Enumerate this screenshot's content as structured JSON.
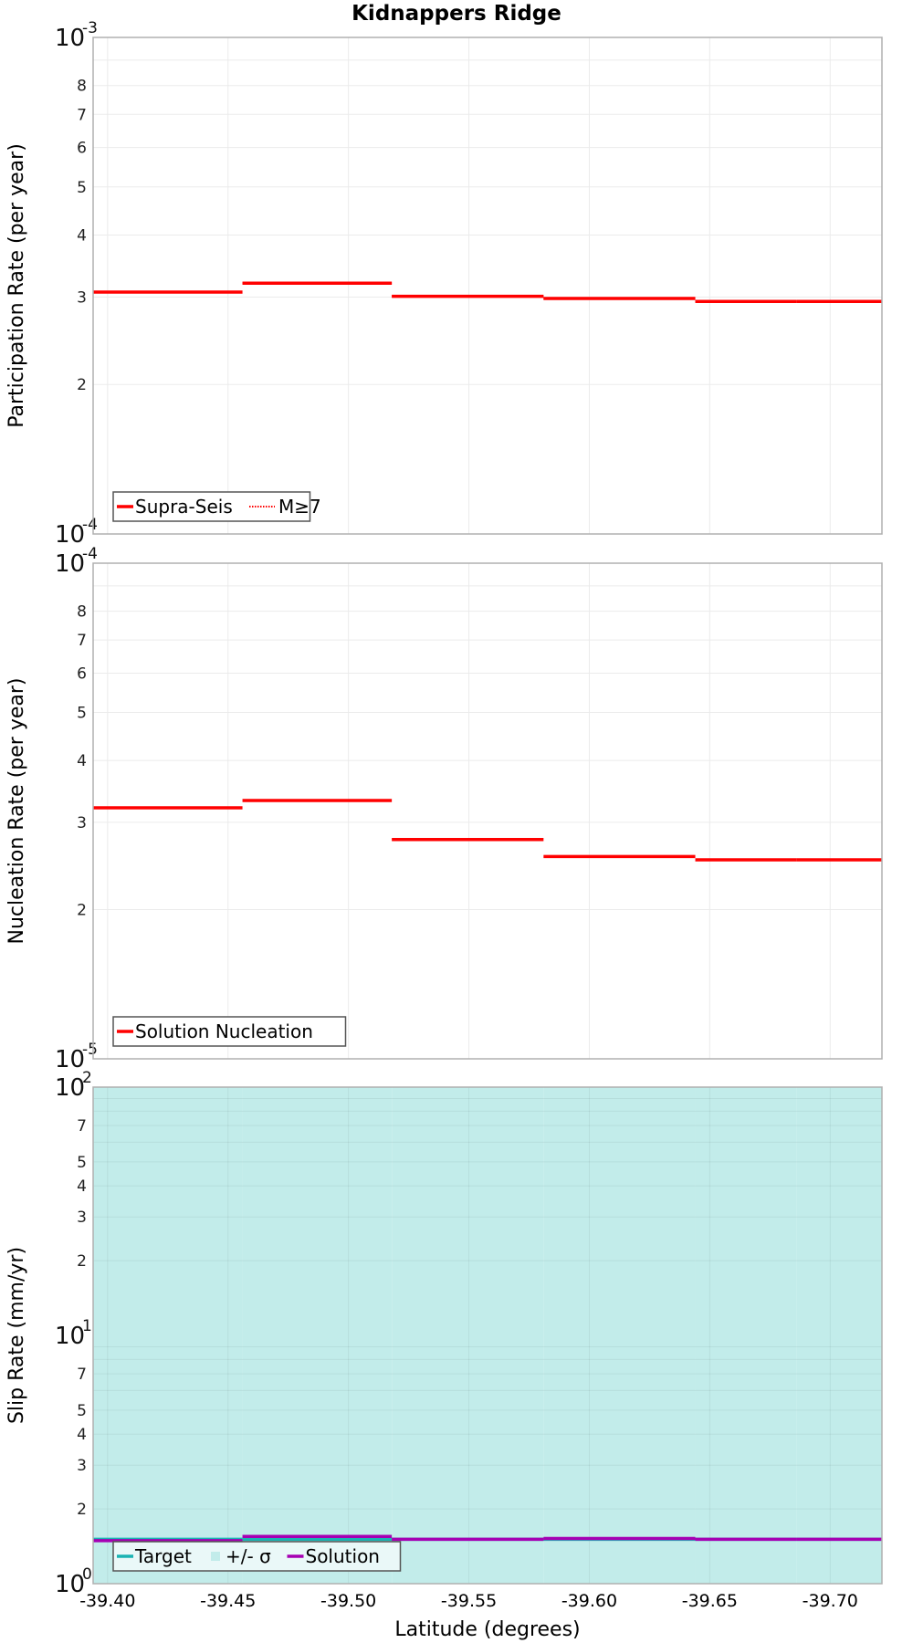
{
  "title": "Kidnappers Ridge",
  "xaxis": {
    "label": "Latitude (degrees)",
    "range": [
      -39.394,
      -39.7215
    ],
    "ticks": [
      -39.4,
      -39.45,
      -39.5,
      -39.55,
      -39.6,
      -39.65,
      -39.7
    ],
    "tick_labels": [
      "-39.40",
      "-39.45",
      "-39.50",
      "-39.55",
      "-39.60",
      "-39.65",
      "-39.70"
    ]
  },
  "chart_data": [
    {
      "type": "line",
      "panel": "participation",
      "ylabel": "Participation Rate (per year)",
      "yscale": "log",
      "ylim": [
        0.0001,
        0.001
      ],
      "ytick_minor_labels": [
        "8",
        "7",
        "6",
        "5",
        "4",
        "3",
        "2"
      ],
      "ydecade_labels": [
        {
          "base": "10",
          "exp": "-3"
        },
        {
          "base": "10",
          "exp": "-4"
        }
      ],
      "segments_lat": [
        [
          -39.394,
          -39.456
        ],
        [
          -39.456,
          -39.518
        ],
        [
          -39.518,
          -39.581
        ],
        [
          -39.581,
          -39.644
        ],
        [
          -39.644,
          -39.686
        ],
        [
          -39.686,
          -39.7215
        ]
      ],
      "series": [
        {
          "name": "Supra-Seis",
          "style": "solid",
          "color": "#ff0000",
          "values": [
            0.000307,
            0.00032,
            0.000301,
            0.000298,
            0.000294,
            0.000294
          ]
        },
        {
          "name": "M≥7",
          "style": "dotted",
          "color": "#ff0000",
          "values": [
            0.000307,
            0.00032,
            0.000301,
            0.000298,
            0.000294,
            0.000294
          ]
        }
      ],
      "legend": {
        "position": "lower-left",
        "entries": [
          "Supra-Seis",
          "M≥7"
        ]
      },
      "grid": true
    },
    {
      "type": "line",
      "panel": "nucleation",
      "ylabel": "Nucleation Rate (per year)",
      "yscale": "log",
      "ylim": [
        1e-05,
        0.0001
      ],
      "ytick_minor_labels": [
        "8",
        "7",
        "6",
        "5",
        "4",
        "3",
        "2"
      ],
      "ydecade_labels": [
        {
          "base": "10",
          "exp": "-4"
        },
        {
          "base": "10",
          "exp": "-5"
        }
      ],
      "segments_lat": [
        [
          -39.394,
          -39.456
        ],
        [
          -39.456,
          -39.518
        ],
        [
          -39.518,
          -39.581
        ],
        [
          -39.581,
          -39.644
        ],
        [
          -39.644,
          -39.686
        ],
        [
          -39.686,
          -39.7215
        ]
      ],
      "series": [
        {
          "name": "Solution Nucleation",
          "style": "solid",
          "color": "#ff0000",
          "values": [
            3.21e-05,
            3.32e-05,
            2.77e-05,
            2.56e-05,
            2.52e-05,
            2.52e-05
          ]
        }
      ],
      "legend": {
        "position": "lower-left",
        "entries": [
          "Solution Nucleation"
        ]
      },
      "grid": true
    },
    {
      "type": "line",
      "panel": "slip-rate",
      "ylabel": "Slip Rate (mm/yr)",
      "yscale": "log",
      "ylim": [
        1,
        100
      ],
      "ytick_minor_labels": [
        "7",
        "5",
        "4",
        "3",
        "2"
      ],
      "ydecade_labels": [
        {
          "base": "10",
          "exp": "2"
        },
        {
          "base": "10",
          "exp": "1"
        },
        {
          "base": "10",
          "exp": "0"
        }
      ],
      "segments_lat": [
        [
          -39.394,
          -39.456
        ],
        [
          -39.456,
          -39.518
        ],
        [
          -39.518,
          -39.581
        ],
        [
          -39.581,
          -39.644
        ],
        [
          -39.644,
          -39.686
        ],
        [
          -39.686,
          -39.7215
        ]
      ],
      "series": [
        {
          "name": "Target",
          "style": "solid",
          "color": "#1ab3b3",
          "values": [
            1.51,
            1.51,
            1.51,
            1.51,
            1.51,
            1.51
          ]
        },
        {
          "name": "+/- σ",
          "style": "fill",
          "color": "#c2ecea",
          "lower": [
            1,
            1,
            1,
            1,
            1,
            1
          ],
          "upper": [
            100,
            100,
            100,
            100,
            100,
            100
          ]
        },
        {
          "name": "Solution",
          "style": "solid",
          "color": "#a600b3",
          "values": [
            1.49,
            1.55,
            1.51,
            1.52,
            1.51,
            1.51
          ]
        }
      ],
      "legend": {
        "position": "lower-left",
        "entries": [
          "Target",
          "+/- σ",
          "Solution"
        ]
      },
      "grid": true
    }
  ]
}
